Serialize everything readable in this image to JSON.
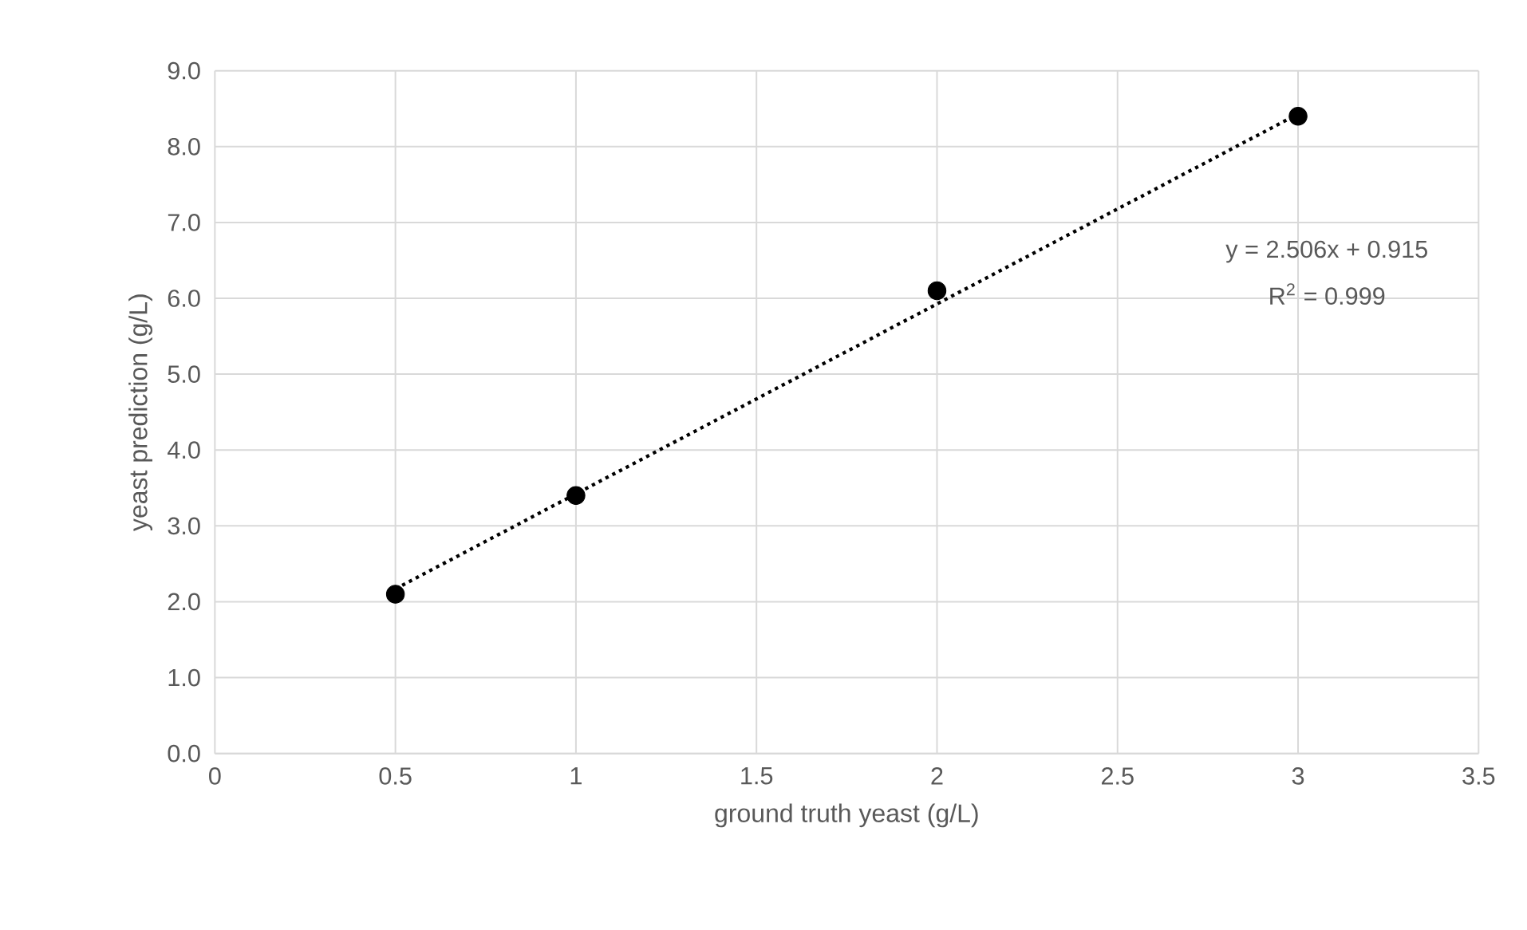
{
  "chart_data": {
    "type": "scatter",
    "xlabel": "ground truth yeast (g/L)",
    "ylabel": "yeast prediction (g/L)",
    "xlim": [
      0,
      3.5
    ],
    "xticks": [
      0,
      0.5,
      1,
      1.5,
      2,
      2.5,
      3,
      3.5
    ],
    "ylim": [
      0,
      9
    ],
    "yticks": [
      {
        "value": 0,
        "label": "0.0"
      },
      {
        "value": 1,
        "label": "1.0"
      },
      {
        "value": 2,
        "label": "2.0"
      },
      {
        "value": 3,
        "label": "3.0"
      },
      {
        "value": 4,
        "label": "4.0"
      },
      {
        "value": 5,
        "label": "5.0"
      },
      {
        "value": 6,
        "label": "6.0"
      },
      {
        "value": 7,
        "label": "7.0"
      },
      {
        "value": 8,
        "label": "8.0"
      },
      {
        "value": 9,
        "label": "9.0"
      }
    ],
    "grid": true,
    "series": [
      {
        "color": "#000000",
        "marker": "circle",
        "x": [
          0.5,
          1,
          2,
          3
        ],
        "values": [
          2.1,
          3.4,
          6.1,
          8.4
        ]
      },
      {
        "type": "line",
        "color": "#000000",
        "line_style": "dotted",
        "marker": "none",
        "x": [
          0.5,
          3
        ],
        "values": [
          2.17,
          8.43
        ]
      }
    ],
    "annotations": [
      "y = 2.506x + 0.915",
      "R$^{2}$ = 0.999"
    ]
  }
}
